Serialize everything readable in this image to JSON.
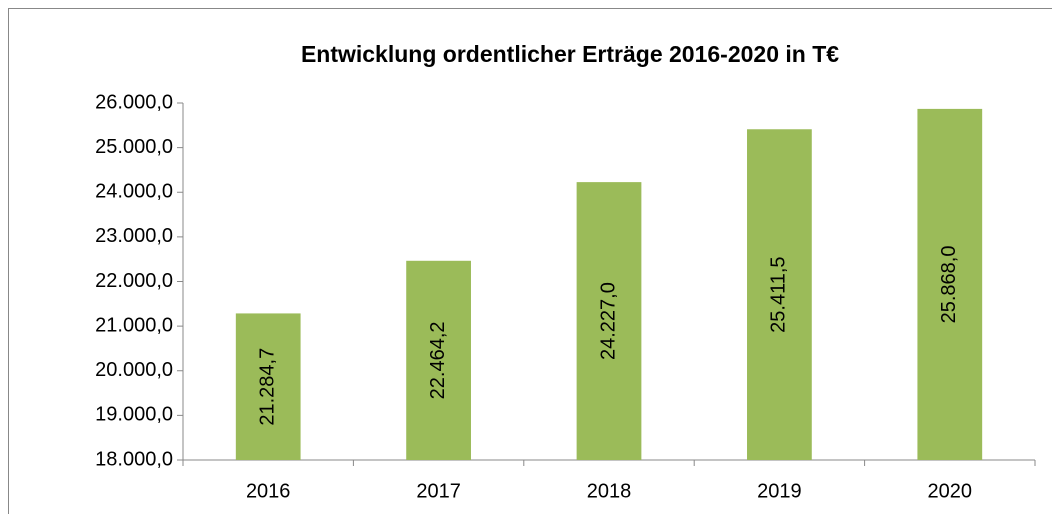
{
  "chart_data": {
    "type": "bar",
    "title": "Entwicklung ordentlicher Erträge 2016-2020 in T€",
    "categories": [
      "2016",
      "2017",
      "2018",
      "2019",
      "2020"
    ],
    "values": [
      21284.7,
      22464.2,
      24227.0,
      25411.5,
      25868.0
    ],
    "value_labels": [
      "21.284,7",
      "22.464,2",
      "24.227,0",
      "25.411,5",
      "25.868,0"
    ],
    "color": "#9bbb59",
    "ylim": [
      18000,
      26000
    ],
    "yticks": [
      {
        "value": 18000,
        "label": "18.000,0"
      },
      {
        "value": 19000,
        "label": "19.000,0"
      },
      {
        "value": 20000,
        "label": "20.000,0"
      },
      {
        "value": 21000,
        "label": "21.000,0"
      },
      {
        "value": 22000,
        "label": "22.000,0"
      },
      {
        "value": 23000,
        "label": "23.000,0"
      },
      {
        "value": 24000,
        "label": "24.000,0"
      },
      {
        "value": 25000,
        "label": "25.000,0"
      },
      {
        "value": 26000,
        "label": "26.000,0"
      }
    ],
    "grid": false
  }
}
